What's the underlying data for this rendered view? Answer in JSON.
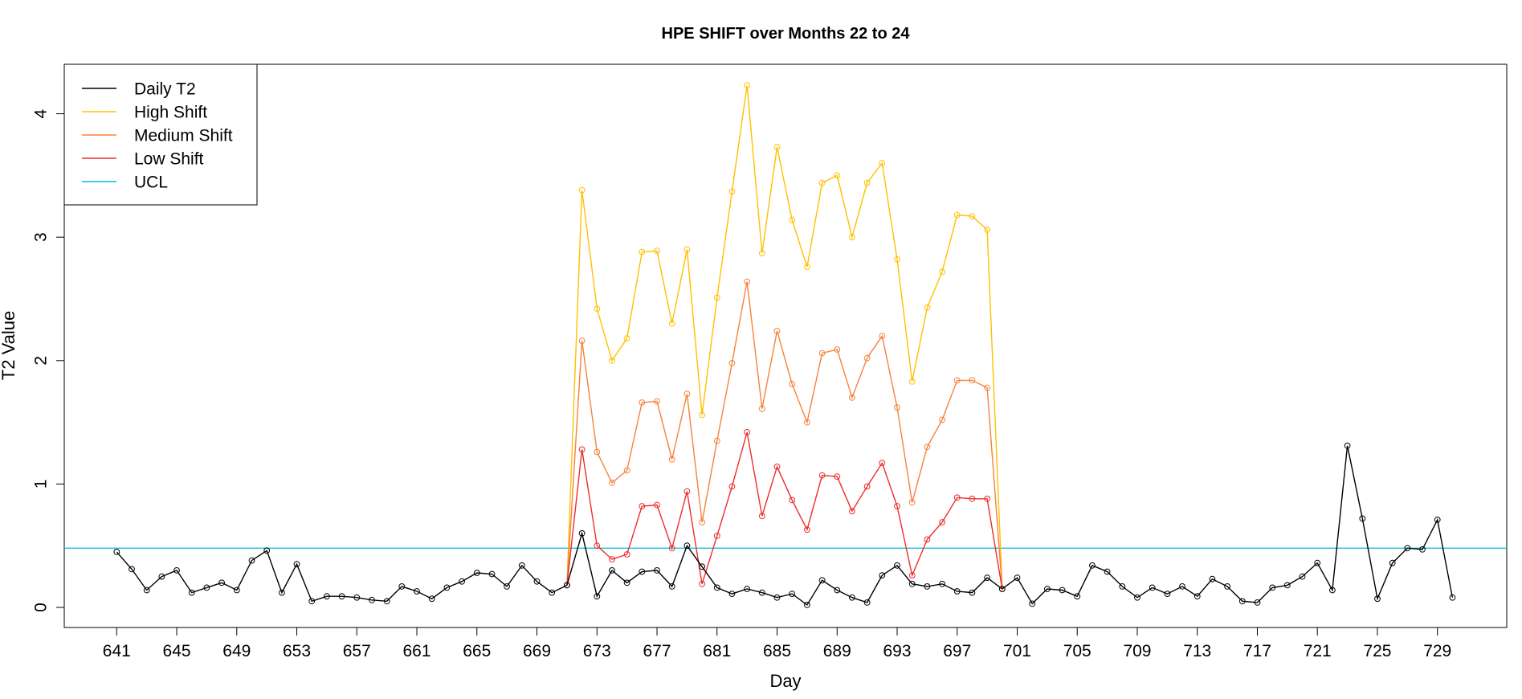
{
  "chart_data": {
    "type": "line",
    "title": "HPE SHIFT over Months 22 to 24",
    "xlabel": "Day",
    "ylabel": "T2 Value",
    "xlim": [
      641,
      730
    ],
    "ylim": [
      0,
      4.25
    ],
    "x_ticks": [
      641,
      645,
      649,
      653,
      657,
      661,
      665,
      669,
      673,
      677,
      681,
      685,
      689,
      693,
      697,
      701,
      705,
      709,
      713,
      717,
      721,
      725,
      729
    ],
    "y_ticks": [
      0,
      1,
      2,
      3,
      4
    ],
    "grid": false,
    "legend_position": "top-left",
    "ucl": 0.48,
    "colors": {
      "daily": "#000000",
      "high": "#FFC000",
      "medium": "#F5823C",
      "low": "#EE2C2C",
      "ucl": "#00BFD8"
    },
    "legend": [
      {
        "label": "Daily T2",
        "color": "#000000"
      },
      {
        "label": "High Shift",
        "color": "#FFC000"
      },
      {
        "label": "Medium Shift",
        "color": "#F5823C"
      },
      {
        "label": "Low Shift",
        "color": "#EE2C2C"
      },
      {
        "label": "UCL",
        "color": "#00BFD8"
      }
    ],
    "series": [
      {
        "name": "Daily T2",
        "x_start": 641,
        "values": [
          0.45,
          0.31,
          0.14,
          0.25,
          0.3,
          0.12,
          0.16,
          0.2,
          0.14,
          0.38,
          0.46,
          0.12,
          0.35,
          0.05,
          0.09,
          0.09,
          0.08,
          0.06,
          0.05,
          0.17,
          0.13,
          0.07,
          0.16,
          0.21,
          0.28,
          0.27,
          0.17,
          0.34,
          0.21,
          0.12,
          0.18,
          0.6,
          0.09,
          0.3,
          0.2,
          0.29,
          0.3,
          0.17,
          0.5,
          0.33,
          0.16,
          0.11,
          0.15,
          0.12,
          0.08,
          0.11,
          0.02,
          0.22,
          0.14,
          0.08,
          0.04,
          0.26,
          0.34,
          0.19,
          0.17,
          0.19,
          0.13,
          0.12,
          0.24,
          0.15,
          0.24,
          0.03,
          0.15,
          0.14,
          0.09,
          0.34,
          0.29,
          0.17,
          0.08,
          0.16,
          0.11,
          0.17,
          0.09,
          0.23,
          0.17,
          0.05,
          0.04,
          0.16,
          0.18,
          0.25,
          0.36,
          0.14,
          1.31,
          0.72,
          0.07,
          0.36,
          0.48,
          0.47,
          0.71,
          0.08
        ]
      },
      {
        "name": "High Shift",
        "x_start": 671,
        "values": [
          0.18,
          3.38,
          2.42,
          2.0,
          2.18,
          2.88,
          2.89,
          2.3,
          2.9,
          1.56,
          2.51,
          3.37,
          4.23,
          2.87,
          3.73,
          3.14,
          2.76,
          3.44,
          3.5,
          3.0,
          3.44,
          3.6,
          2.82,
          1.83,
          2.43,
          2.72,
          3.18,
          3.17,
          3.06,
          0.15
        ]
      },
      {
        "name": "Medium Shift",
        "x_start": 671,
        "values": [
          0.18,
          2.16,
          1.26,
          1.01,
          1.11,
          1.66,
          1.67,
          1.2,
          1.73,
          0.69,
          1.35,
          1.98,
          2.64,
          1.61,
          2.24,
          1.81,
          1.5,
          2.06,
          2.09,
          1.7,
          2.02,
          2.2,
          1.62,
          0.85,
          1.3,
          1.52,
          1.84,
          1.84,
          1.78,
          0.15
        ]
      },
      {
        "name": "Low Shift",
        "x_start": 671,
        "values": [
          0.18,
          1.28,
          0.5,
          0.39,
          0.43,
          0.82,
          0.83,
          0.48,
          0.94,
          0.19,
          0.58,
          0.98,
          1.42,
          0.74,
          1.14,
          0.87,
          0.63,
          1.07,
          1.06,
          0.78,
          0.98,
          1.17,
          0.82,
          0.26,
          0.55,
          0.69,
          0.89,
          0.88,
          0.88,
          0.15
        ]
      }
    ]
  }
}
